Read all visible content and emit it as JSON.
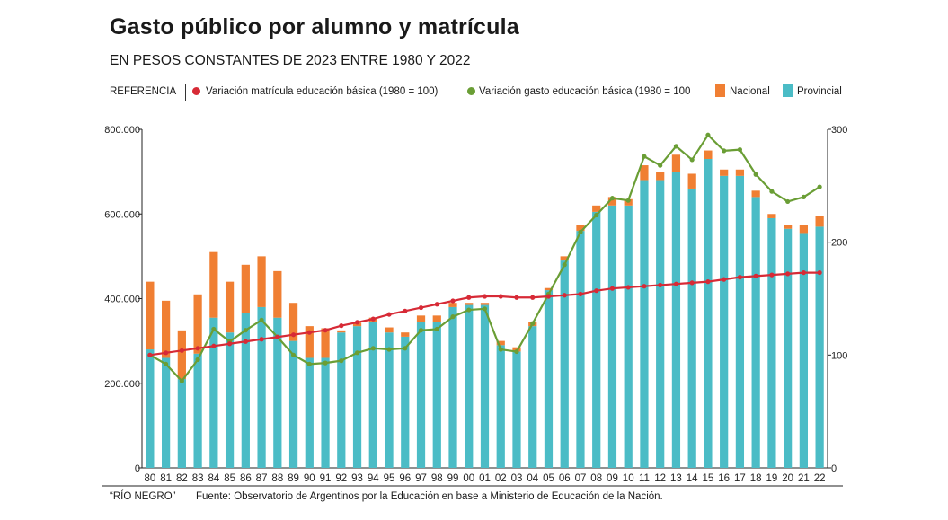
{
  "title": "Gasto público por alumno y matrícula",
  "subtitle": "EN PESOS CONSTANTES DE 2023 ENTRE 1980 Y 2022",
  "legend": {
    "heading": "REFERENCIA",
    "matricula": "Variación matrícula educación básica (1980 = 100)",
    "gasto": "Variación gasto educación básica (1980 = 100",
    "nacional": "Nacional",
    "provincial": "Provincial"
  },
  "footer": {
    "note": "“RÍO NEGRO”",
    "source": "Fuente: Observatorio de Argentinos por la Educación en base a Ministerio de Educación de la Nación."
  },
  "colors": {
    "nacional": "#f07f33",
    "provincial": "#4bbcc6",
    "matricula": "#d72a36",
    "gasto": "#6a9e35"
  },
  "chart_data": {
    "type": "bar",
    "categories": [
      "80",
      "81",
      "82",
      "83",
      "84",
      "85",
      "86",
      "87",
      "88",
      "89",
      "90",
      "91",
      "92",
      "93",
      "94",
      "95",
      "96",
      "97",
      "98",
      "99",
      "00",
      "01",
      "02",
      "03",
      "04",
      "05",
      "06",
      "07",
      "08",
      "09",
      "10",
      "11",
      "12",
      "13",
      "14",
      "15",
      "16",
      "17",
      "18",
      "19",
      "20",
      "21",
      "22"
    ],
    "left_axis": {
      "ylim": [
        0,
        800000
      ],
      "ticks": [
        "0",
        "200.000",
        "400.000",
        "600.000",
        "800.000"
      ]
    },
    "right_axis": {
      "ylim": [
        0,
        300
      ],
      "ticks": [
        "0",
        "100",
        "200",
        "300"
      ]
    },
    "series": [
      {
        "name": "Provincial",
        "kind": "bar-stack",
        "axis": "left",
        "values": [
          280000,
          260000,
          210000,
          270000,
          355000,
          320000,
          365000,
          380000,
          355000,
          300000,
          260000,
          260000,
          320000,
          335000,
          345000,
          320000,
          310000,
          345000,
          345000,
          380000,
          385000,
          385000,
          290000,
          275000,
          335000,
          420000,
          490000,
          560000,
          605000,
          620000,
          620000,
          680000,
          680000,
          700000,
          660000,
          730000,
          690000,
          690000,
          640000,
          590000,
          565000,
          555000,
          570000
        ]
      },
      {
        "name": "Nacional",
        "kind": "bar-stack",
        "axis": "left",
        "values": [
          160000,
          135000,
          115000,
          140000,
          155000,
          120000,
          115000,
          120000,
          110000,
          90000,
          75000,
          70000,
          5000,
          8000,
          10000,
          12000,
          10000,
          15000,
          15000,
          10000,
          5000,
          5000,
          10000,
          10000,
          10000,
          5000,
          10000,
          15000,
          15000,
          20000,
          15000,
          35000,
          20000,
          40000,
          35000,
          20000,
          15000,
          15000,
          15000,
          10000,
          10000,
          20000,
          25000
        ]
      },
      {
        "name": "Variación matrícula educación básica (1980 = 100)",
        "kind": "line",
        "axis": "right",
        "values": [
          100,
          102,
          104,
          106,
          108,
          110,
          112,
          114,
          116,
          118,
          120,
          122,
          126,
          129,
          132,
          136,
          139,
          142,
          145,
          148,
          151,
          152,
          152,
          151,
          151,
          152,
          153,
          154,
          157,
          159,
          160,
          161,
          162,
          163,
          164,
          165,
          167,
          169,
          170,
          171,
          172,
          173,
          173
        ]
      },
      {
        "name": "Variación gasto educación básica (1980 = 100",
        "kind": "line",
        "axis": "right",
        "values": [
          100,
          92,
          77,
          96,
          123,
          112,
          122,
          131,
          116,
          100,
          92,
          93,
          95,
          102,
          106,
          105,
          106,
          122,
          123,
          134,
          140,
          141,
          105,
          103,
          128,
          154,
          180,
          209,
          224,
          239,
          237,
          276,
          268,
          285,
          273,
          295,
          281,
          282,
          260,
          245,
          236,
          240,
          249
        ]
      }
    ]
  }
}
